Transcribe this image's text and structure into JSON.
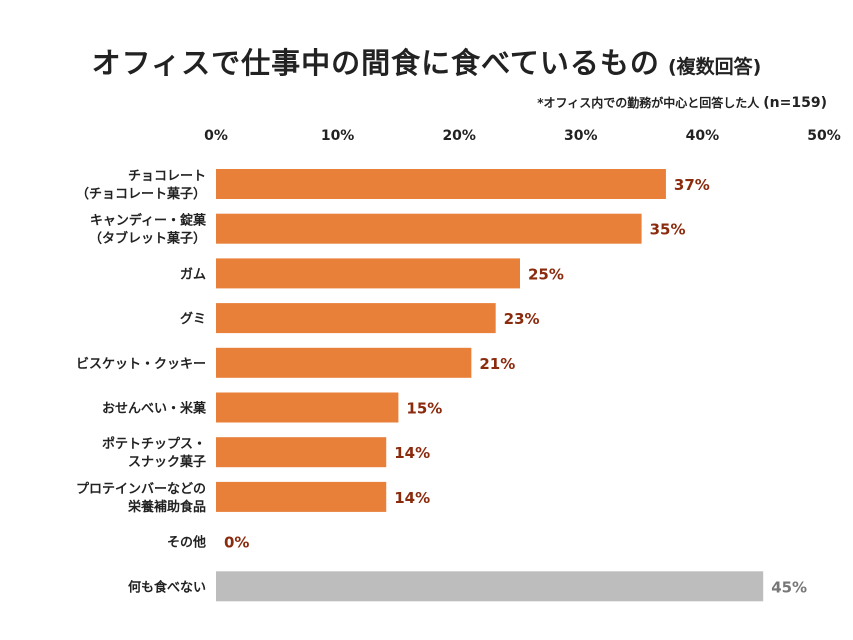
{
  "title": "オフィスで仕事中の間食に食べているもの",
  "subtitle": "(複数回答)",
  "note": "*オフィス内での勤務が中心と回答した人",
  "sample": "(n=159)",
  "colors": {
    "bar": "#E8803A",
    "bar_none": "#BDBDBD",
    "label": "#8B2B0E",
    "label_none": "#777777"
  },
  "chart_data": {
    "type": "bar",
    "orientation": "horizontal",
    "xlim": [
      0,
      50
    ],
    "ticks": [
      "0%",
      "10%",
      "20%",
      "30%",
      "40%",
      "50%"
    ],
    "tick_values": [
      0,
      10,
      20,
      30,
      40,
      50
    ],
    "categories": [
      [
        "チョコレート",
        "（チョコレート菓子）"
      ],
      [
        "キャンディー・錠菓",
        "（タブレット菓子）"
      ],
      [
        "ガム"
      ],
      [
        "グミ"
      ],
      [
        "ビスケット・クッキー"
      ],
      [
        "おせんべい・米菓"
      ],
      [
        "ポテトチップス・",
        "スナック菓子"
      ],
      [
        "プロテインバーなどの",
        "栄養補助食品"
      ],
      [
        "その他"
      ],
      [
        "何も食べない"
      ]
    ],
    "values": [
      37,
      35,
      25,
      23,
      21,
      15,
      14,
      14,
      0,
      45
    ],
    "value_labels": [
      "37%",
      "35%",
      "25%",
      "23%",
      "21%",
      "15%",
      "14%",
      "14%",
      "0%",
      "45%"
    ]
  }
}
